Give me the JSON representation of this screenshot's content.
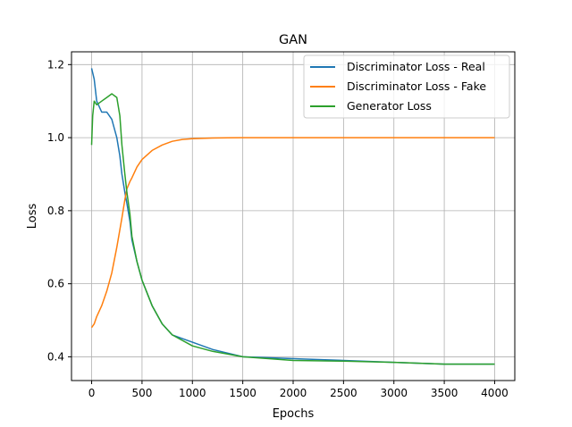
{
  "chart_data": {
    "type": "line",
    "title": "GAN",
    "xlabel": "Epochs",
    "ylabel": "Loss",
    "xlim": [
      -200,
      4200
    ],
    "ylim": [
      0.335,
      1.235
    ],
    "x_ticks": [
      0,
      500,
      1000,
      1500,
      2000,
      2500,
      3000,
      3500,
      4000
    ],
    "y_ticks": [
      0.4,
      0.6,
      0.8,
      1.0,
      1.2
    ],
    "x_tick_labels": [
      "0",
      "500",
      "1000",
      "1500",
      "2000",
      "2500",
      "3000",
      "3500",
      "4000"
    ],
    "y_tick_labels": [
      "0.4",
      "0.6",
      "0.8",
      "1.0",
      "1.2"
    ],
    "grid": true,
    "legend_position": "top-right",
    "series": [
      {
        "name": "Discriminator Loss - Real",
        "color": "#1f77b4",
        "x": [
          0,
          25,
          50,
          100,
          150,
          200,
          250,
          280,
          300,
          330,
          350,
          380,
          400,
          450,
          500,
          600,
          700,
          800,
          1000,
          1200,
          1500,
          2000,
          2500,
          3000,
          3500,
          4000
        ],
        "y": [
          1.19,
          1.16,
          1.1,
          1.07,
          1.07,
          1.05,
          1.0,
          0.95,
          0.9,
          0.85,
          0.82,
          0.77,
          0.72,
          0.66,
          0.61,
          0.54,
          0.49,
          0.46,
          0.44,
          0.42,
          0.4,
          0.395,
          0.39,
          0.385,
          0.38,
          0.38
        ]
      },
      {
        "name": "Discriminator Loss - Fake",
        "color": "#ff7f0e",
        "x": [
          0,
          25,
          50,
          100,
          150,
          200,
          250,
          300,
          330,
          350,
          380,
          400,
          450,
          500,
          600,
          700,
          800,
          900,
          1000,
          1100,
          1200,
          1500,
          2000,
          2500,
          3000,
          3500,
          4000
        ],
        "y": [
          0.48,
          0.49,
          0.51,
          0.54,
          0.58,
          0.63,
          0.7,
          0.78,
          0.83,
          0.86,
          0.88,
          0.89,
          0.92,
          0.94,
          0.965,
          0.98,
          0.99,
          0.995,
          0.997,
          0.998,
          0.999,
          1.0,
          1.0,
          1.0,
          1.0,
          1.0,
          1.0
        ]
      },
      {
        "name": "Generator Loss",
        "color": "#2ca02c",
        "x": [
          0,
          10,
          25,
          50,
          100,
          150,
          200,
          250,
          280,
          300,
          330,
          350,
          380,
          400,
          450,
          500,
          600,
          700,
          800,
          1000,
          1200,
          1500,
          2000,
          2500,
          3000,
          3500,
          4000
        ],
        "y": [
          0.98,
          1.06,
          1.1,
          1.09,
          1.1,
          1.11,
          1.12,
          1.11,
          1.06,
          0.98,
          0.9,
          0.85,
          0.79,
          0.73,
          0.66,
          0.61,
          0.54,
          0.49,
          0.46,
          0.43,
          0.415,
          0.4,
          0.39,
          0.388,
          0.385,
          0.38,
          0.38
        ]
      }
    ]
  }
}
